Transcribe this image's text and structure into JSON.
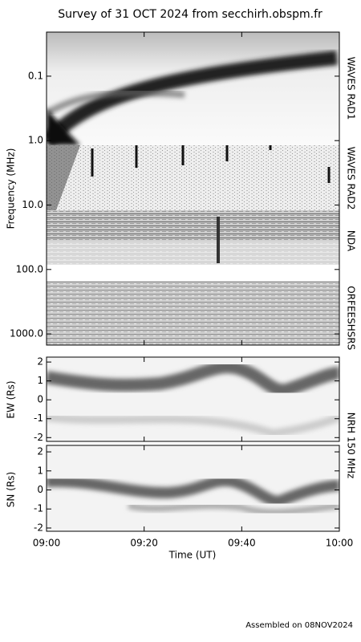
{
  "title": "Survey of 31 OCT 2024 from secchirh.obspm.fr",
  "footer": "Assembled on 08NOV2024",
  "panel_label": "NRH 150 MHz",
  "chart_data": [
    {
      "type": "spectrogram",
      "ylabel": "Frequency (MHz)",
      "log_y": true,
      "ylim": [
        0.0207,
        1490
      ],
      "yticks": [
        0.1,
        {
          "value": 1,
          "label": "1.0"
        },
        {
          "value": 10,
          "label": "10.0"
        },
        {
          "value": 100,
          "label": "100.0"
        },
        {
          "value": 1000,
          "label": "1000.0"
        }
      ],
      "instruments": [
        "WAVES RAD1",
        "WAVES RAD2",
        "NDA",
        "ORFEES",
        "HSRS"
      ],
      "xlim": [
        0,
        60
      ]
    },
    {
      "type": "heatmap",
      "ylabel": "EW (Rs)",
      "ylim": [
        -2.2,
        2.26
      ],
      "yticks": [
        -2,
        -1,
        0,
        1,
        2
      ],
      "xlim": [
        0,
        60
      ]
    },
    {
      "type": "heatmap",
      "ylabel": "SN (Rs)",
      "ylim": [
        -2.17,
        2.34
      ],
      "yticks": [
        -2,
        -1,
        0,
        1,
        2
      ],
      "xlim": [
        0,
        60
      ],
      "xlabel": "Time (UT)",
      "xticks": [
        {
          "value": 0,
          "label": "09:00"
        },
        {
          "value": 20,
          "label": "09:20"
        },
        {
          "value": 40,
          "label": "09:40"
        },
        {
          "value": 60,
          "label": "10:00"
        }
      ]
    }
  ]
}
